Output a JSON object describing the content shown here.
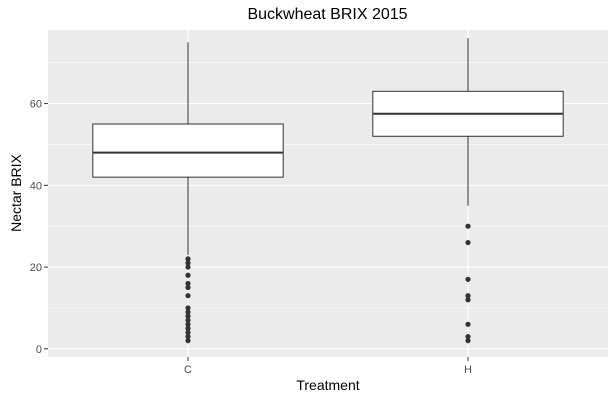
{
  "chart_data": {
    "type": "boxplot",
    "title": "Buckwheat BRIX 2015",
    "xlabel": "Treatment",
    "ylabel": "Nectar BRIX",
    "categories": [
      "C",
      "H"
    ],
    "ylim": [
      -2,
      78
    ],
    "yticks": [
      0,
      20,
      40,
      60
    ],
    "grid": true,
    "boxes": [
      {
        "category": "C",
        "whisker_low": 23,
        "q1": 42,
        "median": 48,
        "q3": 55,
        "whisker_high": 75,
        "outliers": [
          22,
          21,
          20,
          18,
          16,
          15,
          13,
          10,
          9,
          8,
          7,
          6,
          5,
          4,
          3,
          2
        ]
      },
      {
        "category": "H",
        "whisker_low": 35,
        "q1": 52,
        "median": 57.5,
        "q3": 63,
        "whisker_high": 76,
        "outliers": [
          30,
          26,
          17,
          13,
          12,
          6,
          3,
          2
        ]
      }
    ]
  }
}
